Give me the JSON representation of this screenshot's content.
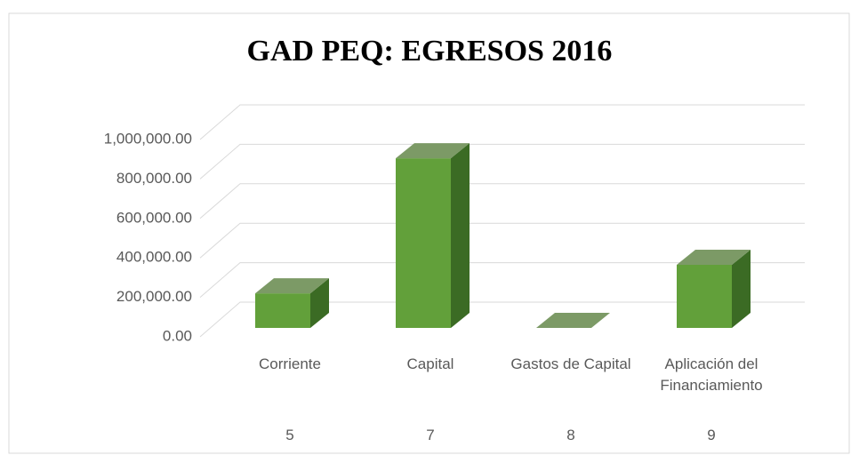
{
  "chart_data": {
    "type": "bar3d",
    "title": "GAD PEQ: EGRESOS 2016",
    "categories": [
      "Corriente",
      "Capital",
      "Gastos de Capital",
      "Aplicación del Financiamiento"
    ],
    "category_codes": [
      "5",
      "7",
      "8",
      "9"
    ],
    "values": [
      175000,
      860000,
      0,
      320000
    ],
    "color": "#62a03a",
    "ylim": [
      0,
      1000000
    ],
    "yticks": [
      {
        "value": 0,
        "label": "0.00"
      },
      {
        "value": 200000,
        "label": "200,000.00"
      },
      {
        "value": 400000,
        "label": "400,000.00"
      },
      {
        "value": 600000,
        "label": "600,000.00"
      },
      {
        "value": 800000,
        "label": "800,000.00"
      },
      {
        "value": 1000000,
        "label": "1,000,000.00"
      }
    ],
    "grid": true
  }
}
